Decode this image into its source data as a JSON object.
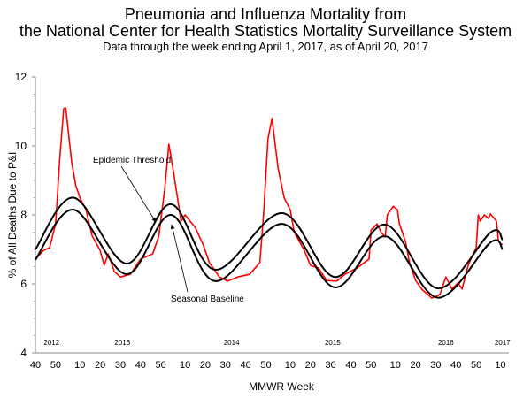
{
  "chart_data": {
    "type": "line",
    "title": "Pneumonia and Influenza Mortality from",
    "title_line2": "the National Center for Health Statistics Mortality Surveillance System",
    "subtitle": "Data through the week ending April 1, 2017, as of April 20, 2017",
    "xlabel": "MMWR Week",
    "ylabel": "% of All Deaths Due to P&I",
    "ylim": [
      4,
      12
    ],
    "yticks": [
      "4",
      "6",
      "8",
      "10",
      "12"
    ],
    "grid": false,
    "x_start": "2011-40",
    "xticks": [
      {
        "x": "2011-40",
        "label": "40"
      },
      {
        "x": "2011-50",
        "label": "50"
      },
      {
        "x": "2012-10",
        "label": "10"
      },
      {
        "x": "2012-20",
        "label": "20"
      },
      {
        "x": "2012-30",
        "label": "30"
      },
      {
        "x": "2012-40",
        "label": "40"
      },
      {
        "x": "2012-50",
        "label": "50"
      },
      {
        "x": "2013-10",
        "label": "10"
      },
      {
        "x": "2013-20",
        "label": "20"
      },
      {
        "x": "2013-30",
        "label": "30"
      },
      {
        "x": "2013-40",
        "label": "40"
      },
      {
        "x": "2013-50",
        "label": "50"
      },
      {
        "x": "2014-10",
        "label": "10"
      },
      {
        "x": "2014-20",
        "label": "20"
      },
      {
        "x": "2014-30",
        "label": "30"
      },
      {
        "x": "2014-40",
        "label": "40"
      },
      {
        "x": "2014-50",
        "label": "50"
      },
      {
        "x": "2015-10",
        "label": "10"
      },
      {
        "x": "2015-20",
        "label": "20"
      },
      {
        "x": "2015-30",
        "label": "30"
      },
      {
        "x": "2015-40",
        "label": "40"
      },
      {
        "x": "2015-50",
        "label": "50"
      },
      {
        "x": "2016-10",
        "label": "10"
      }
    ],
    "year_labels": [
      {
        "x": "2011-48",
        "label": "2012"
      },
      {
        "x": "2012-31",
        "label": "2013"
      },
      {
        "x": "2013-33",
        "label": "2014"
      },
      {
        "x": "2014-31",
        "label": "2015"
      },
      {
        "x": "2015-35",
        "label": "2016"
      },
      {
        "x": "2016-11",
        "label": "2017"
      }
    ],
    "series": [
      {
        "key": "pi",
        "color": "#ff0000",
        "points": [
          [
            "2011-40",
            6.72
          ],
          [
            "2011-44",
            6.97
          ],
          [
            "2011-47",
            7.05
          ],
          [
            "2011-50",
            7.74
          ],
          [
            "2011-52",
            9.6
          ],
          [
            "2012-02",
            11.08
          ],
          [
            "2012-03",
            11.1
          ],
          [
            "2012-06",
            9.5
          ],
          [
            "2012-08",
            8.85
          ],
          [
            "2012-10",
            8.5
          ],
          [
            "2012-13",
            8.15
          ],
          [
            "2012-16",
            7.4
          ],
          [
            "2012-20",
            6.97
          ],
          [
            "2012-22",
            6.54
          ],
          [
            "2012-24",
            6.87
          ],
          [
            "2012-27",
            6.36
          ],
          [
            "2012-30",
            6.2
          ],
          [
            "2012-35",
            6.28
          ],
          [
            "2012-40",
            6.72
          ],
          [
            "2012-46",
            6.87
          ],
          [
            "2012-49",
            7.38
          ],
          [
            "2012-52",
            8.77
          ],
          [
            "2013-02",
            10.05
          ],
          [
            "2013-04",
            9.36
          ],
          [
            "2013-06",
            8.6
          ],
          [
            "2013-08",
            7.82
          ],
          [
            "2013-10",
            8.0
          ],
          [
            "2013-15",
            7.64
          ],
          [
            "2013-19",
            7.13
          ],
          [
            "2013-22",
            6.62
          ],
          [
            "2013-27",
            6.2
          ],
          [
            "2013-31",
            6.08
          ],
          [
            "2013-36",
            6.2
          ],
          [
            "2013-42",
            6.28
          ],
          [
            "2013-47",
            6.62
          ],
          [
            "2013-49",
            8.15
          ],
          [
            "2013-51",
            10.2
          ],
          [
            "2014-01",
            10.8
          ],
          [
            "2014-04",
            9.36
          ],
          [
            "2014-07",
            8.5
          ],
          [
            "2014-10",
            8.15
          ],
          [
            "2014-12",
            7.5
          ],
          [
            "2014-17",
            6.97
          ],
          [
            "2014-20",
            6.54
          ],
          [
            "2014-24",
            6.46
          ],
          [
            "2014-28",
            6.1
          ],
          [
            "2014-33",
            6.08
          ],
          [
            "2014-37",
            6.28
          ],
          [
            "2014-43",
            6.46
          ],
          [
            "2014-49",
            6.72
          ],
          [
            "2014-50",
            7.56
          ],
          [
            "2015-01",
            7.74
          ],
          [
            "2015-03",
            7.49
          ],
          [
            "2015-05",
            7.36
          ],
          [
            "2015-06",
            8.0
          ],
          [
            "2015-09",
            8.25
          ],
          [
            "2015-11",
            8.15
          ],
          [
            "2015-12",
            7.74
          ],
          [
            "2015-15",
            7.23
          ],
          [
            "2015-17",
            6.62
          ],
          [
            "2015-20",
            6.1
          ],
          [
            "2015-23",
            5.85
          ],
          [
            "2015-28",
            5.59
          ],
          [
            "2015-32",
            5.69
          ],
          [
            "2015-35",
            6.2
          ],
          [
            "2015-38",
            5.85
          ],
          [
            "2015-41",
            6.03
          ],
          [
            "2015-43",
            5.85
          ],
          [
            "2015-46",
            6.54
          ],
          [
            "2015-50",
            7.05
          ],
          [
            "2015-51",
            8.0
          ],
          [
            "2015-52",
            7.82
          ],
          [
            "2016-02",
            8.0
          ],
          [
            "2016-04",
            7.9
          ],
          [
            "2016-05",
            8.03
          ],
          [
            "2016-08",
            7.82
          ],
          [
            "2016-09",
            7.23
          ],
          [
            "2016-11",
            7.13
          ]
        ]
      },
      {
        "key": "threshold",
        "name": "Epidemic Threshold",
        "color": "#000000",
        "points": [
          [
            "2011-40",
            7.0
          ],
          [
            "2012-07",
            8.5
          ],
          [
            "2012-33",
            6.59
          ],
          [
            "2013-03",
            8.31
          ],
          [
            "2013-25",
            6.41
          ],
          [
            "2014-06",
            8.05
          ],
          [
            "2014-32",
            6.2
          ],
          [
            "2015-05",
            7.72
          ],
          [
            "2015-31",
            5.87
          ],
          [
            "2016-05",
            7.49
          ],
          [
            "2016-11",
            7.28
          ]
        ]
      },
      {
        "key": "baseline",
        "name": "Seasonal Baseline",
        "color": "#000000",
        "points": [
          [
            "2011-40",
            6.7
          ],
          [
            "2012-07",
            8.15
          ],
          [
            "2012-33",
            6.28
          ],
          [
            "2013-03",
            8.0
          ],
          [
            "2013-25",
            6.08
          ],
          [
            "2014-06",
            7.74
          ],
          [
            "2014-32",
            5.9
          ],
          [
            "2015-05",
            7.38
          ],
          [
            "2015-31",
            5.6
          ],
          [
            "2016-05",
            7.2
          ],
          [
            "2016-11",
            7.0
          ]
        ]
      }
    ]
  }
}
